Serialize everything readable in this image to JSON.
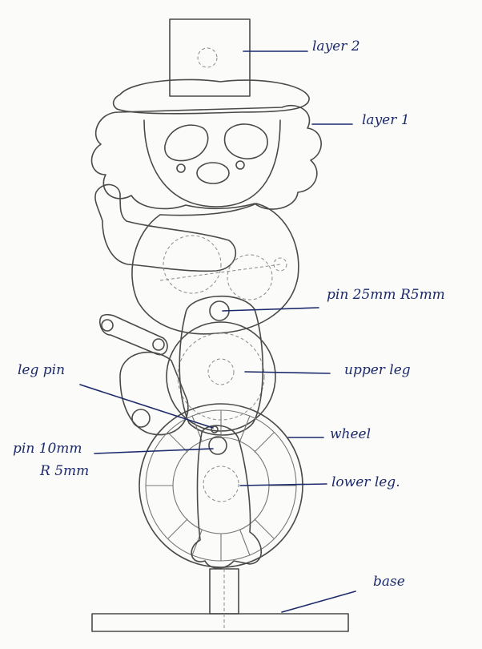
{
  "labels": {
    "layer2": "layer 2",
    "layer1": "layer 1",
    "pin25": "pin 25mm  R5mm",
    "leg_pin": "leg pin",
    "upper_leg": "upper leg",
    "pin10_line1": "pin 10mm",
    "pin10_line2": "R 5mm",
    "wheel": "wheel",
    "lower_leg": "lower leg.",
    "base": "base"
  },
  "colors": {
    "pencil": "#4a4a4a",
    "ink": "#1d2a6b",
    "paper": "#fbfbf9"
  }
}
